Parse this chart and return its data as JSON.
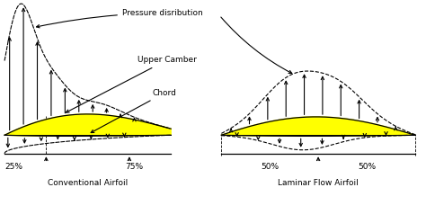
{
  "airfoil_fill": "#ffff00",
  "airfoil_edge": "#000000",
  "arrow_color": "#000000",
  "line_color": "#000000",
  "title": "Pressure disribution",
  "label_upper_camber": "Upper Camber",
  "label_chord": "Chord",
  "label_conv": "Conventional Airfoil",
  "label_lam": "Laminar Flow Airfoil",
  "conv_pct_left": "25%",
  "conv_pct_right": "75%",
  "lam_pct_left": "50%",
  "lam_pct_right": "50%"
}
